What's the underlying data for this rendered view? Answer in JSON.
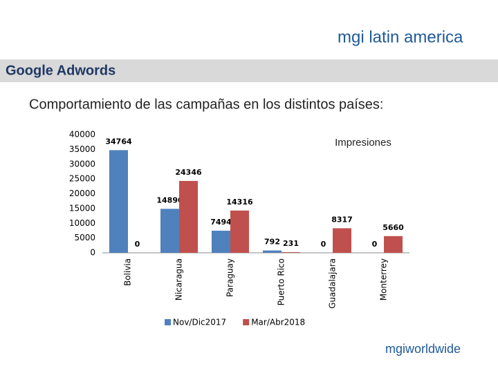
{
  "header": {
    "section": "Google Adwords",
    "subtitle": "Comportamiento de las campañas en los distintos países:",
    "logo_top": "mgi latin america",
    "logo_bottom": "mgiworldwide"
  },
  "chart_data": {
    "type": "bar",
    "title": "Impresiones",
    "categories": [
      "Bolivia",
      "Nicaragua",
      "Paraguay",
      "Puerto Rico",
      "Guadalajara",
      "Monterrey"
    ],
    "series": [
      {
        "name": "Nov/Dic2017",
        "color": "#4f81bd",
        "values": [
          34764,
          14890,
          7494,
          792,
          0,
          0
        ]
      },
      {
        "name": "Mar/Abr2018",
        "color": "#c0504d",
        "values": [
          0,
          24346,
          14316,
          231,
          8317,
          5660
        ]
      }
    ],
    "ylim": [
      0,
      40000
    ],
    "yticks": [
      0,
      5000,
      10000,
      15000,
      20000,
      25000,
      30000,
      35000,
      40000
    ],
    "grid": false,
    "legend": "bottom"
  }
}
